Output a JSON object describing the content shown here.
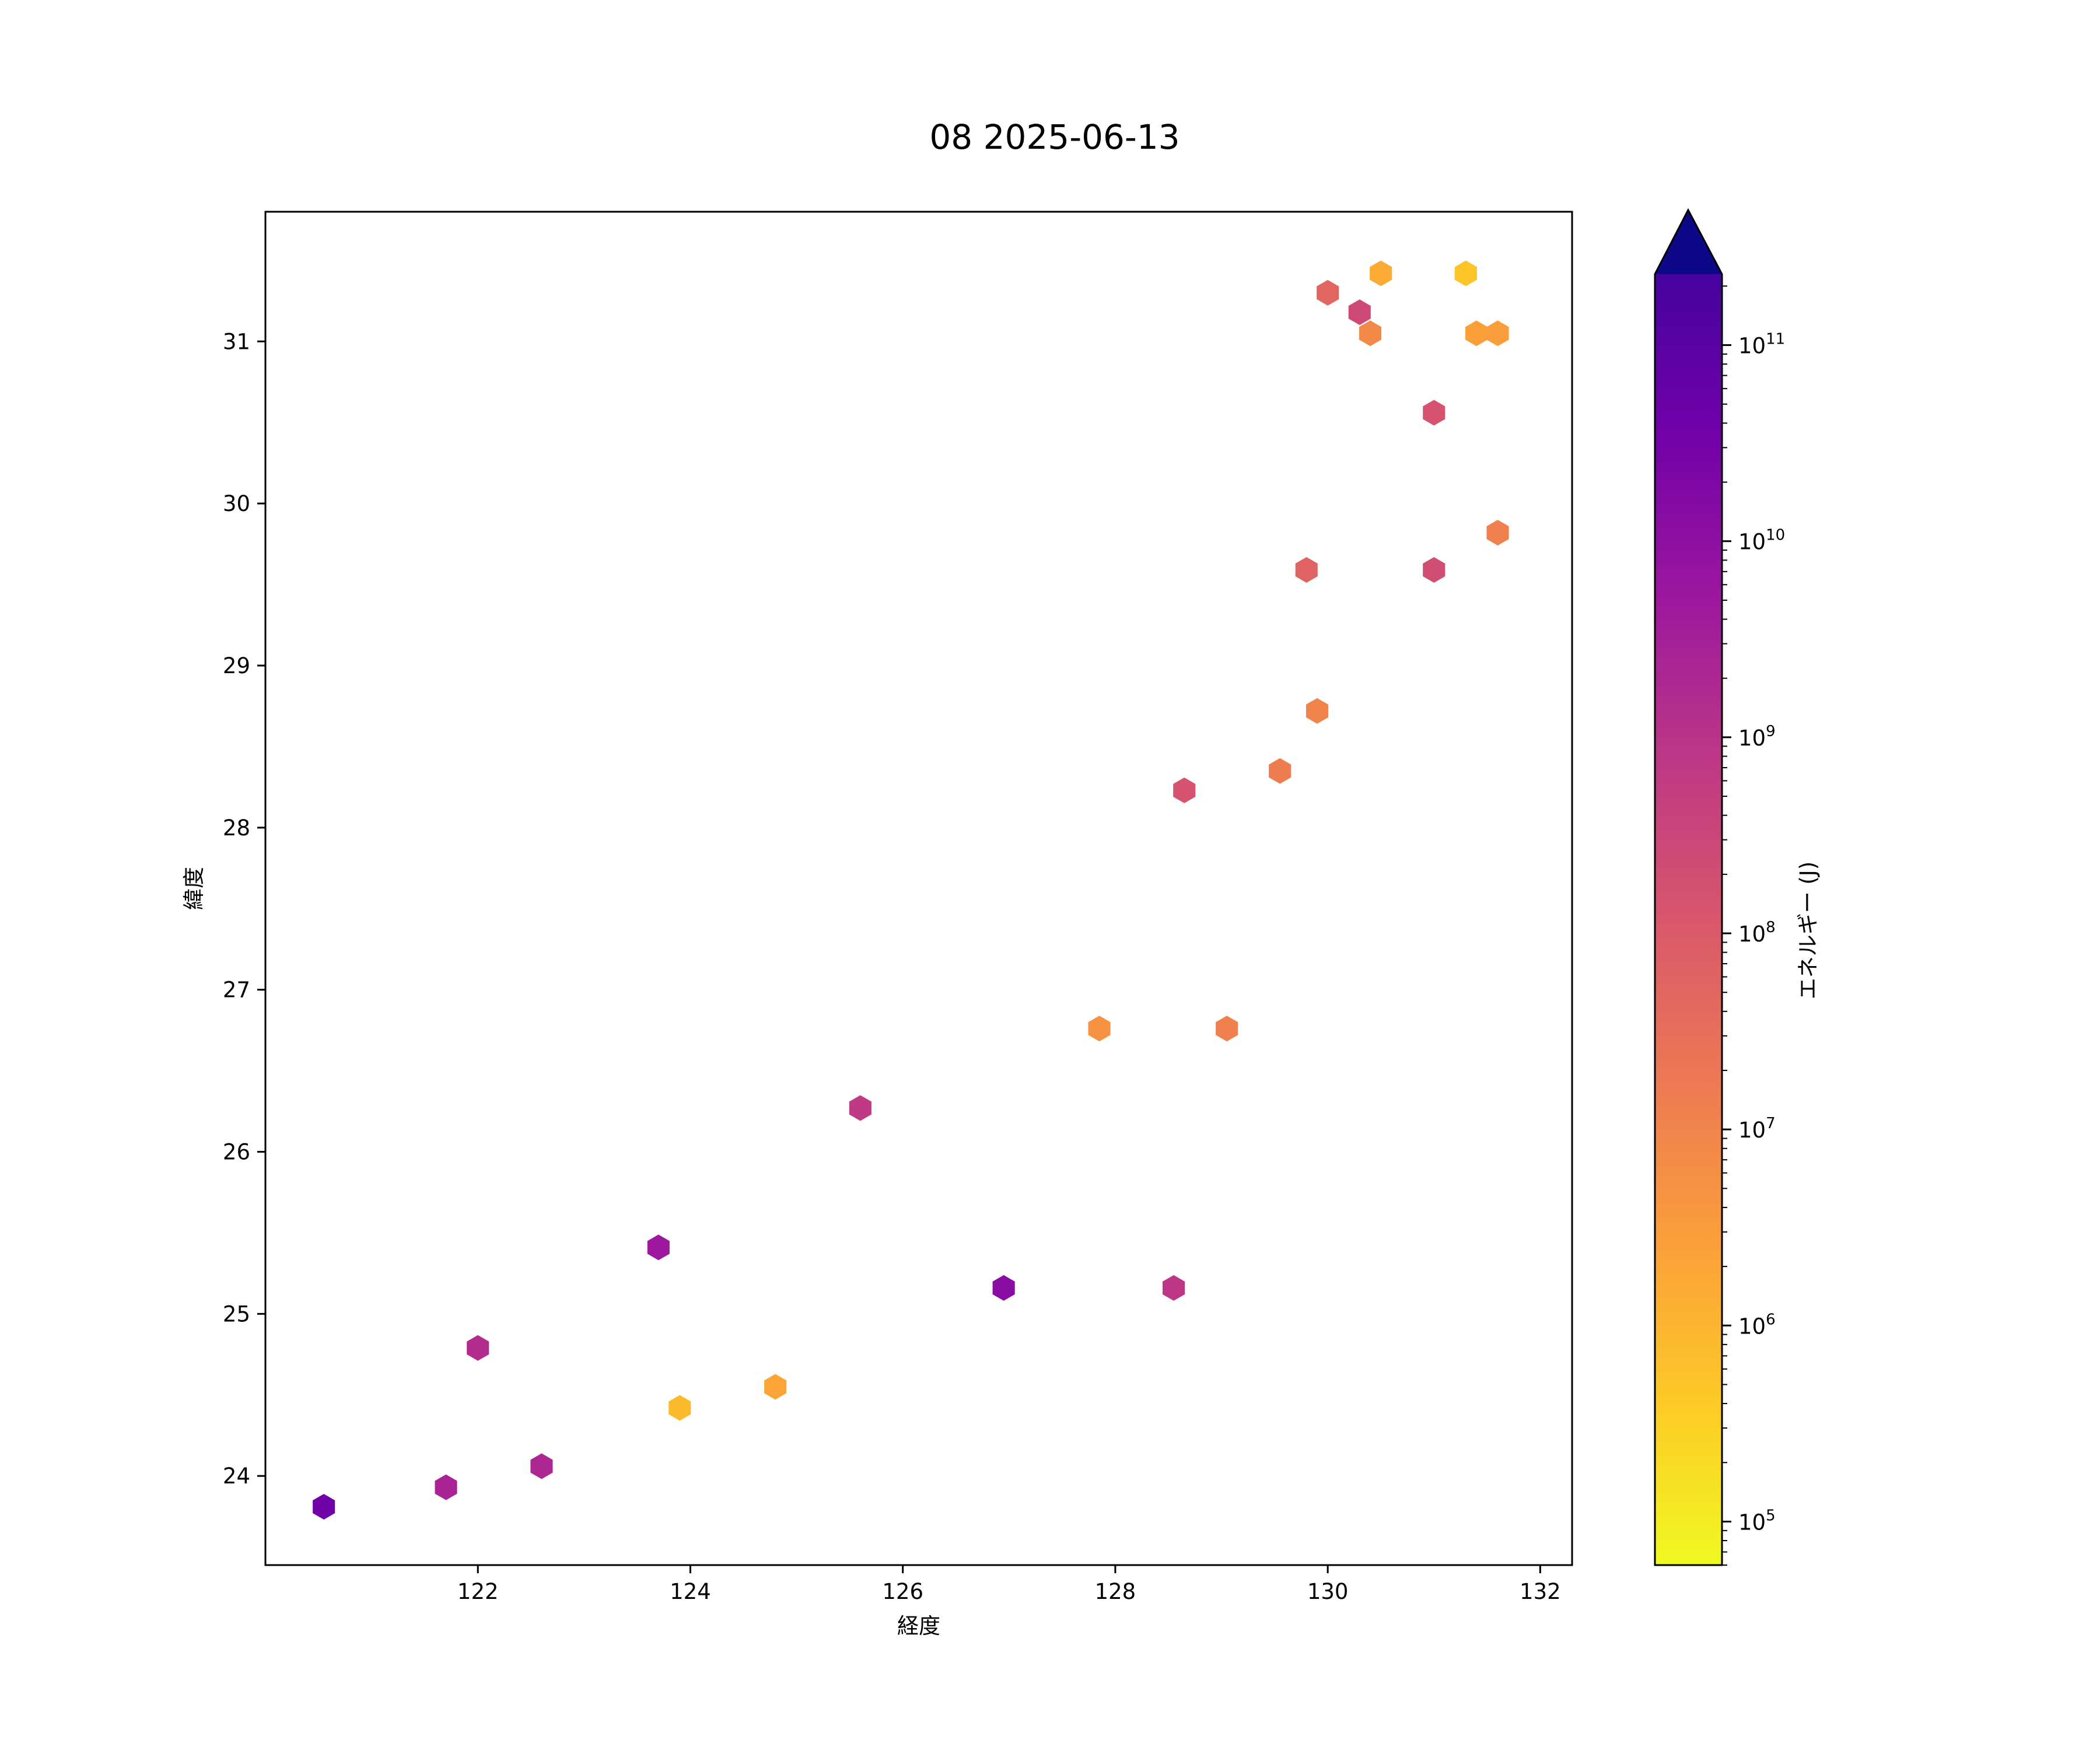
{
  "chart_data": {
    "type": "scatter",
    "marker": "hexagon",
    "title": "08 2025-06-13",
    "xlabel": "経度",
    "ylabel": "緯度",
    "xlim": [
      120.0,
      132.3
    ],
    "ylim": [
      23.45,
      31.8
    ],
    "xticks": [
      122,
      124,
      126,
      128,
      130,
      132
    ],
    "yticks": [
      24,
      25,
      26,
      27,
      28,
      29,
      30,
      31
    ],
    "grid": false,
    "colorbar": {
      "label": "エネルギー (J)",
      "scale": "log",
      "colormap": "plasma",
      "range": [
        60000,
        230000000000
      ],
      "ticks": [
        {
          "value": 100000,
          "base": "10",
          "exp": "5"
        },
        {
          "value": 1000000,
          "base": "10",
          "exp": "6"
        },
        {
          "value": 10000000,
          "base": "10",
          "exp": "7"
        },
        {
          "value": 100000000,
          "base": "10",
          "exp": "8"
        },
        {
          "value": 1000000000,
          "base": "10",
          "exp": "9"
        },
        {
          "value": 10000000000,
          "base": "10",
          "exp": "10"
        },
        {
          "value": 100000000000,
          "base": "10",
          "exp": "11"
        }
      ],
      "extend": "max",
      "extend_color": "#0d0887"
    },
    "points": [
      {
        "x": 120.55,
        "y": 23.81,
        "energy": 40000000000
      },
      {
        "x": 121.7,
        "y": 23.93,
        "energy": 2500000000
      },
      {
        "x": 122.0,
        "y": 24.79,
        "energy": 1500000000
      },
      {
        "x": 122.6,
        "y": 24.06,
        "energy": 2000000000
      },
      {
        "x": 123.7,
        "y": 25.41,
        "energy": 5000000000
      },
      {
        "x": 123.9,
        "y": 24.42,
        "energy": 800000
      },
      {
        "x": 124.8,
        "y": 24.55,
        "energy": 2000000
      },
      {
        "x": 125.6,
        "y": 26.27,
        "energy": 700000000
      },
      {
        "x": 126.95,
        "y": 25.16,
        "energy": 12000000000
      },
      {
        "x": 127.85,
        "y": 26.76,
        "energy": 5000000
      },
      {
        "x": 128.55,
        "y": 25.16,
        "energy": 800000000
      },
      {
        "x": 128.65,
        "y": 28.23,
        "energy": 150000000
      },
      {
        "x": 129.05,
        "y": 26.76,
        "energy": 12000000
      },
      {
        "x": 129.55,
        "y": 28.35,
        "energy": 15000000
      },
      {
        "x": 129.8,
        "y": 29.59,
        "energy": 60000000
      },
      {
        "x": 129.9,
        "y": 28.72,
        "energy": 10000000
      },
      {
        "x": 130.0,
        "y": 31.3,
        "energy": 50000000
      },
      {
        "x": 130.3,
        "y": 31.18,
        "energy": 250000000
      },
      {
        "x": 130.4,
        "y": 31.05,
        "energy": 8000000
      },
      {
        "x": 130.5,
        "y": 31.42,
        "energy": 1500000
      },
      {
        "x": 131.0,
        "y": 30.56,
        "energy": 150000000
      },
      {
        "x": 131.0,
        "y": 29.59,
        "energy": 200000000
      },
      {
        "x": 131.3,
        "y": 31.42,
        "energy": 500000
      },
      {
        "x": 131.4,
        "y": 31.05,
        "energy": 2500000
      },
      {
        "x": 131.6,
        "y": 31.05,
        "energy": 3000000
      },
      {
        "x": 131.6,
        "y": 29.82,
        "energy": 12000000
      }
    ]
  }
}
